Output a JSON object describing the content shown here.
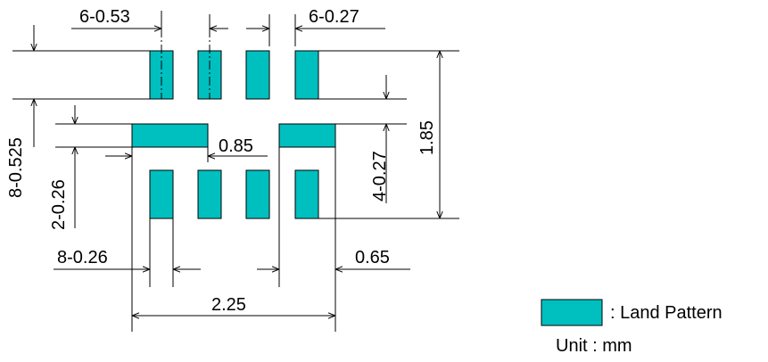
{
  "dimensions": {
    "top_pitch": "6-0.53",
    "top_width": "6-0.27",
    "left_height": "8-0.525",
    "left_small": "2-0.26",
    "center_gap": "0.85",
    "right_small": "4-0.27",
    "total_height": "1.85",
    "bottom_width": "8-0.26",
    "bottom_right": "0.65",
    "total_width": "2.25"
  },
  "legend": {
    "label": ": Land Pattern",
    "unit": "Unit : mm",
    "swatch_color": "#00bfbf"
  },
  "colors": {
    "pad": "#00bfbf",
    "line": "#000000"
  }
}
